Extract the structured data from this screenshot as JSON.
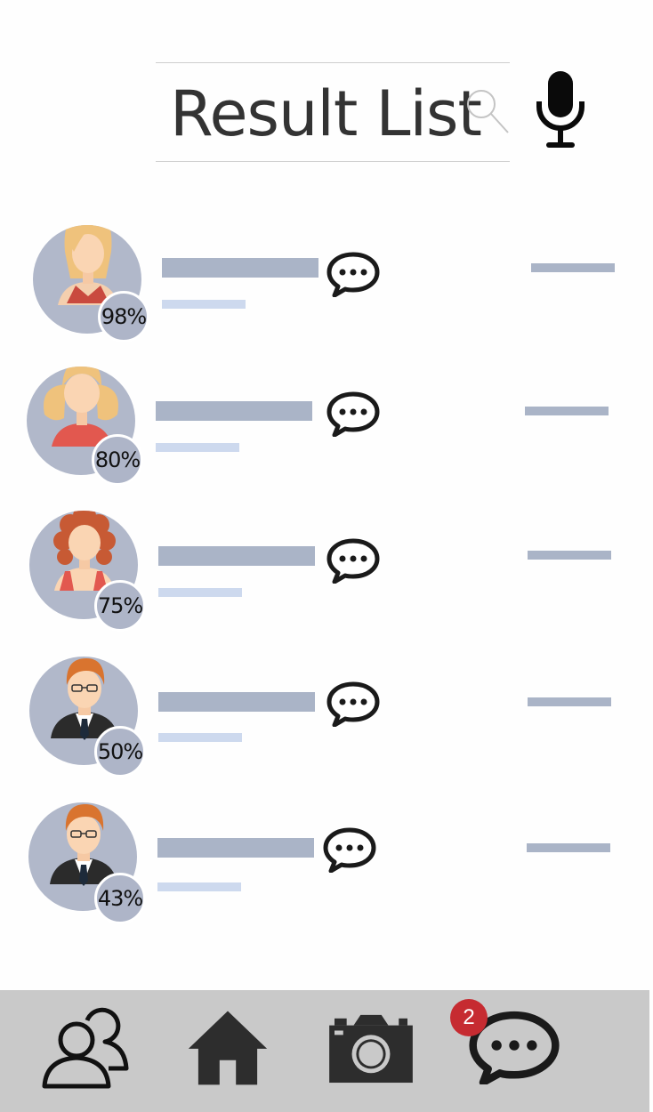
{
  "header": {
    "search_text": "Result List",
    "search_icon": "search-icon",
    "mic_icon": "microphone-icon"
  },
  "results": [
    {
      "match": "98%",
      "avatar": "woman-blonde-avatar"
    },
    {
      "match": "80%",
      "avatar": "girl-pigtails-avatar"
    },
    {
      "match": "75%",
      "avatar": "woman-curly-avatar"
    },
    {
      "match": "50%",
      "avatar": "man-glasses-avatar"
    },
    {
      "match": "43%",
      "avatar": "man-glasses-avatar"
    }
  ],
  "nav": {
    "items": [
      "contacts-icon",
      "home-icon",
      "camera-icon",
      "chat-icon"
    ],
    "chat_badge": "2"
  },
  "colors": {
    "avatar_bg": "#b1b8ca",
    "bar_primary": "#aab4c7",
    "bar_secondary": "#cdd9ee",
    "nav_bg": "#c9c9c9",
    "badge": "#c62b31"
  }
}
